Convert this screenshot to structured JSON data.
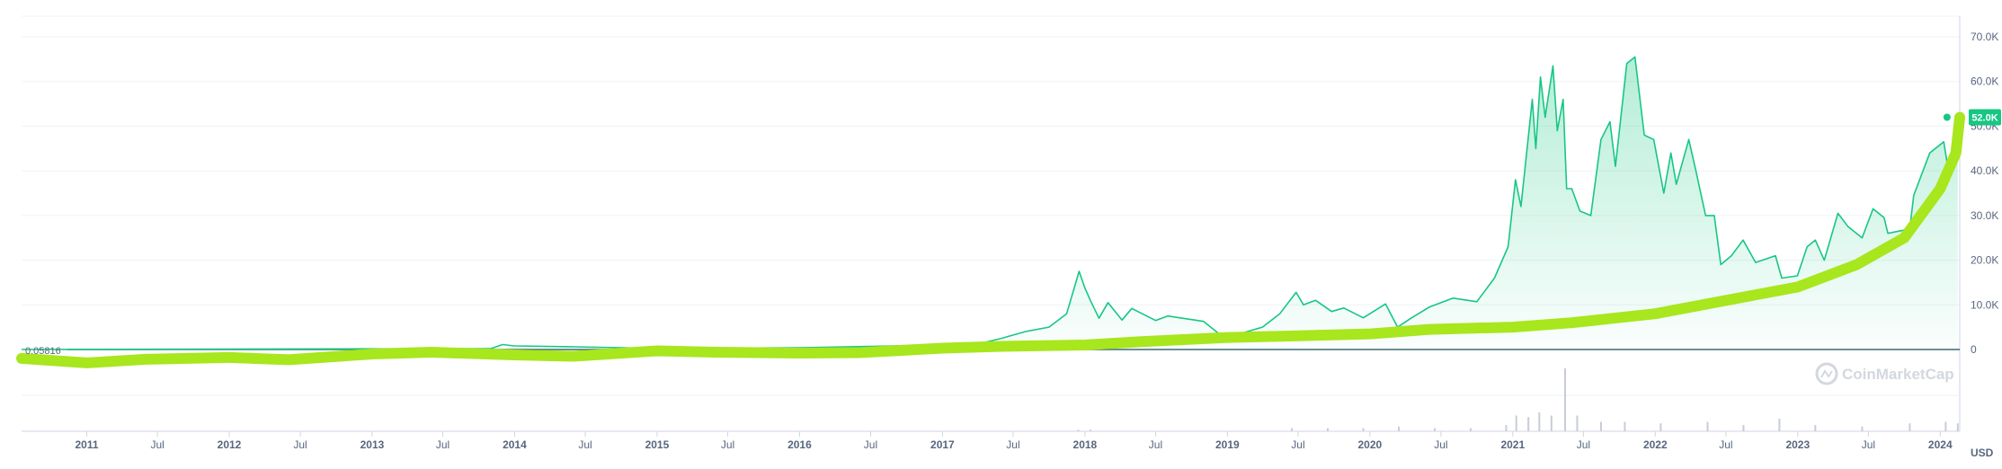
{
  "chart_data": {
    "type": "line",
    "title": "",
    "xlabel": "",
    "ylabel": "",
    "currency_label": "USD",
    "start_value_label": "0.05816",
    "current_value_label": "52.0K",
    "watermark": "CoinMarketCap",
    "ylim": [
      0,
      72000
    ],
    "y_ticks": [
      {
        "value": 0,
        "label": "0"
      },
      {
        "value": 10000,
        "label": "10.0K"
      },
      {
        "value": 20000,
        "label": "20.0K"
      },
      {
        "value": 30000,
        "label": "30.0K"
      },
      {
        "value": 40000,
        "label": "40.0K"
      },
      {
        "value": 50000,
        "label": "50.0K"
      },
      {
        "value": 60000,
        "label": "60.0K"
      },
      {
        "value": 70000,
        "label": "70.0K"
      }
    ],
    "x_ticks": [
      {
        "date": "2011-01-01",
        "label": "2011",
        "major": true
      },
      {
        "date": "2011-07-01",
        "label": "Jul",
        "major": false
      },
      {
        "date": "2012-01-01",
        "label": "2012",
        "major": true
      },
      {
        "date": "2012-07-01",
        "label": "Jul",
        "major": false
      },
      {
        "date": "2013-01-01",
        "label": "2013",
        "major": true
      },
      {
        "date": "2013-07-01",
        "label": "Jul",
        "major": false
      },
      {
        "date": "2014-01-01",
        "label": "2014",
        "major": true
      },
      {
        "date": "2014-07-01",
        "label": "Jul",
        "major": false
      },
      {
        "date": "2015-01-01",
        "label": "2015",
        "major": true
      },
      {
        "date": "2015-07-01",
        "label": "Jul",
        "major": false
      },
      {
        "date": "2016-01-01",
        "label": "2016",
        "major": true
      },
      {
        "date": "2016-07-01",
        "label": "Jul",
        "major": false
      },
      {
        "date": "2017-01-01",
        "label": "2017",
        "major": true
      },
      {
        "date": "2017-07-01",
        "label": "Jul",
        "major": false
      },
      {
        "date": "2018-01-01",
        "label": "2018",
        "major": true
      },
      {
        "date": "2018-07-01",
        "label": "Jul",
        "major": false
      },
      {
        "date": "2019-01-01",
        "label": "2019",
        "major": true
      },
      {
        "date": "2019-07-01",
        "label": "Jul",
        "major": false
      },
      {
        "date": "2020-01-01",
        "label": "2020",
        "major": true
      },
      {
        "date": "2020-07-01",
        "label": "Jul",
        "major": false
      },
      {
        "date": "2021-01-01",
        "label": "2021",
        "major": true
      },
      {
        "date": "2021-07-01",
        "label": "Jul",
        "major": false
      },
      {
        "date": "2022-01-01",
        "label": "2022",
        "major": true
      },
      {
        "date": "2022-07-01",
        "label": "Jul",
        "major": false
      },
      {
        "date": "2023-01-01",
        "label": "2023",
        "major": true
      },
      {
        "date": "2023-07-01",
        "label": "Jul",
        "major": false
      },
      {
        "date": "2024-01-01",
        "label": "2024",
        "major": true
      }
    ],
    "x_range": [
      "2010-07-18",
      "2024-02-20"
    ],
    "grid": true,
    "colors": {
      "price_line": "#16c784",
      "price_fill": "#16c784",
      "trend_line": "#a8e61d",
      "badge": "#16c784",
      "axis_text": "#58667e",
      "grid": "#eff2f5",
      "baseline": "#3b6a72"
    },
    "price_series": [
      [
        "2010-07-18",
        0.06
      ],
      [
        "2013-11-01",
        200
      ],
      [
        "2013-12-01",
        1100
      ],
      [
        "2014-01-01",
        800
      ],
      [
        "2014-06-01",
        600
      ],
      [
        "2015-01-01",
        250
      ],
      [
        "2016-01-01",
        400
      ],
      [
        "2016-06-01",
        650
      ],
      [
        "2017-01-01",
        1000
      ],
      [
        "2017-04-01",
        1200
      ],
      [
        "2017-06-01",
        2500
      ],
      [
        "2017-08-01",
        4000
      ],
      [
        "2017-10-01",
        5000
      ],
      [
        "2017-11-15",
        8000
      ],
      [
        "2017-12-17",
        17500
      ],
      [
        "2017-12-31",
        14000
      ],
      [
        "2018-01-15",
        11000
      ],
      [
        "2018-02-06",
        7000
      ],
      [
        "2018-03-01",
        10500
      ],
      [
        "2018-04-06",
        6600
      ],
      [
        "2018-05-01",
        9200
      ],
      [
        "2018-07-01",
        6500
      ],
      [
        "2018-08-01",
        7500
      ],
      [
        "2018-11-01",
        6300
      ],
      [
        "2018-12-15",
        3200
      ],
      [
        "2019-02-01",
        3500
      ],
      [
        "2019-04-01",
        5000
      ],
      [
        "2019-05-15",
        8000
      ],
      [
        "2019-06-26",
        12800
      ],
      [
        "2019-07-15",
        10000
      ],
      [
        "2019-08-15",
        11000
      ],
      [
        "2019-09-25",
        8500
      ],
      [
        "2019-10-26",
        9300
      ],
      [
        "2019-12-15",
        7100
      ],
      [
        "2020-02-10",
        10200
      ],
      [
        "2020-03-12",
        5000
      ],
      [
        "2020-04-15",
        7000
      ],
      [
        "2020-06-01",
        9500
      ],
      [
        "2020-08-01",
        11500
      ],
      [
        "2020-10-01",
        10700
      ],
      [
        "2020-11-15",
        16000
      ],
      [
        "2020-12-20",
        23000
      ],
      [
        "2021-01-08",
        38000
      ],
      [
        "2021-01-22",
        32000
      ],
      [
        "2021-02-20",
        56000
      ],
      [
        "2021-03-01",
        45000
      ],
      [
        "2021-03-13",
        61000
      ],
      [
        "2021-03-25",
        52000
      ],
      [
        "2021-04-14",
        63500
      ],
      [
        "2021-04-25",
        49000
      ],
      [
        "2021-05-10",
        56000
      ],
      [
        "2021-05-19",
        36000
      ],
      [
        "2021-06-01",
        36000
      ],
      [
        "2021-06-22",
        31000
      ],
      [
        "2021-07-20",
        30000
      ],
      [
        "2021-08-15",
        47000
      ],
      [
        "2021-09-07",
        51000
      ],
      [
        "2021-09-21",
        41000
      ],
      [
        "2021-10-20",
        64000
      ],
      [
        "2021-11-10",
        65500
      ],
      [
        "2021-12-04",
        48000
      ],
      [
        "2021-12-28",
        47000
      ],
      [
        "2022-01-23",
        35000
      ],
      [
        "2022-02-10",
        44000
      ],
      [
        "2022-02-24",
        37000
      ],
      [
        "2022-03-28",
        47000
      ],
      [
        "2022-04-15",
        40000
      ],
      [
        "2022-05-10",
        30000
      ],
      [
        "2022-06-01",
        30000
      ],
      [
        "2022-06-18",
        19000
      ],
      [
        "2022-07-15",
        21000
      ],
      [
        "2022-08-14",
        24500
      ],
      [
        "2022-09-15",
        19500
      ],
      [
        "2022-11-05",
        21000
      ],
      [
        "2022-11-21",
        16000
      ],
      [
        "2022-12-31",
        16500
      ],
      [
        "2023-01-25",
        23000
      ],
      [
        "2023-02-15",
        24500
      ],
      [
        "2023-03-10",
        20000
      ],
      [
        "2023-04-14",
        30500
      ],
      [
        "2023-05-10",
        27500
      ],
      [
        "2023-06-15",
        25000
      ],
      [
        "2023-07-13",
        31500
      ],
      [
        "2023-08-10",
        29500
      ],
      [
        "2023-08-20",
        26000
      ],
      [
        "2023-10-15",
        27000
      ],
      [
        "2023-10-25",
        34500
      ],
      [
        "2023-12-05",
        44000
      ],
      [
        "2024-01-10",
        46500
      ],
      [
        "2024-01-23",
        39500
      ],
      [
        "2024-02-05",
        43000
      ],
      [
        "2024-02-15",
        52000
      ]
    ],
    "trend_series": [
      [
        "2010-07-18",
        -2000
      ],
      [
        "2011-01-01",
        -3000
      ],
      [
        "2011-06-01",
        -2200
      ],
      [
        "2012-01-01",
        -1800
      ],
      [
        "2012-06-01",
        -2300
      ],
      [
        "2013-01-01",
        -1000
      ],
      [
        "2013-06-01",
        -600
      ],
      [
        "2014-01-01",
        -1200
      ],
      [
        "2014-06-01",
        -1500
      ],
      [
        "2015-01-01",
        -300
      ],
      [
        "2015-06-01",
        -600
      ],
      [
        "2016-01-01",
        -800
      ],
      [
        "2016-06-01",
        -700
      ],
      [
        "2017-01-01",
        300
      ],
      [
        "2017-06-01",
        700
      ],
      [
        "2018-01-01",
        1000
      ],
      [
        "2018-06-01",
        1800
      ],
      [
        "2019-01-01",
        2700
      ],
      [
        "2019-06-01",
        3000
      ],
      [
        "2020-01-01",
        3500
      ],
      [
        "2020-06-01",
        4500
      ],
      [
        "2021-01-01",
        5000
      ],
      [
        "2021-06-01",
        6000
      ],
      [
        "2022-01-01",
        8000
      ],
      [
        "2022-06-01",
        10500
      ],
      [
        "2023-01-01",
        14000
      ],
      [
        "2023-06-01",
        19000
      ],
      [
        "2023-10-01",
        25000
      ],
      [
        "2024-01-01",
        36000
      ],
      [
        "2024-02-10",
        44000
      ],
      [
        "2024-02-20",
        52000
      ]
    ],
    "volume_bars": [
      [
        "2017-12-15",
        1
      ],
      [
        "2018-01-15",
        1
      ],
      [
        "2019-06-15",
        2
      ],
      [
        "2019-09-15",
        2
      ],
      [
        "2019-12-15",
        2
      ],
      [
        "2020-03-15",
        3
      ],
      [
        "2020-06-15",
        2
      ],
      [
        "2020-09-15",
        2
      ],
      [
        "2020-12-15",
        4
      ],
      [
        "2021-01-10",
        10
      ],
      [
        "2021-02-10",
        9
      ],
      [
        "2021-03-10",
        12
      ],
      [
        "2021-04-10",
        10
      ],
      [
        "2021-05-15",
        40
      ],
      [
        "2021-06-15",
        10
      ],
      [
        "2021-08-15",
        6
      ],
      [
        "2021-10-15",
        6
      ],
      [
        "2022-01-15",
        5
      ],
      [
        "2022-05-15",
        6
      ],
      [
        "2022-08-15",
        4
      ],
      [
        "2022-11-15",
        8
      ],
      [
        "2023-02-15",
        4
      ],
      [
        "2023-06-15",
        3
      ],
      [
        "2023-10-15",
        5
      ],
      [
        "2024-01-15",
        6
      ],
      [
        "2024-02-15",
        5
      ]
    ]
  }
}
